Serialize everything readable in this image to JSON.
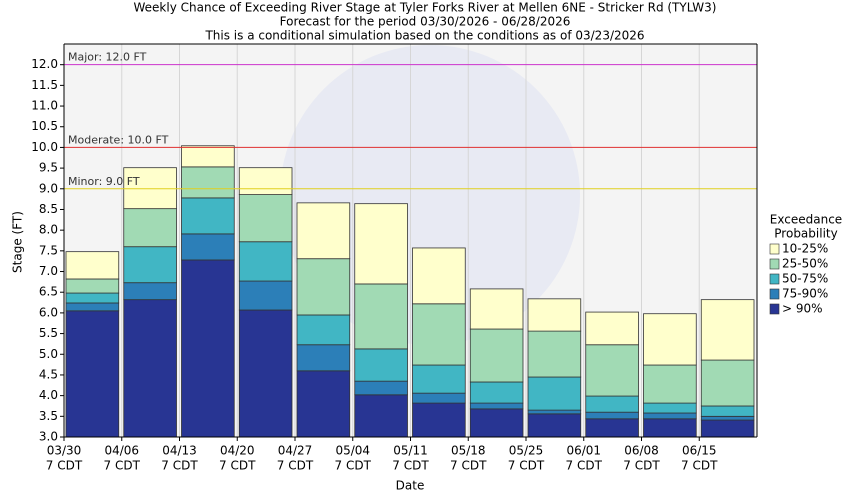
{
  "chart_data": {
    "type": "floating-bar",
    "title": "Weekly Chance of Exceeding River Stage at Tyler Forks River at Mellen 6NE - Stricker Rd (TYLW3)",
    "subtitle": "Forecast for the period 03/30/2026 - 06/28/2026",
    "note": "This is a conditional simulation based on the conditions as of 03/23/2026",
    "x_label": "Date",
    "y_label": "Stage (FT)",
    "legend_title": [
      "Exceedance",
      "Probability"
    ],
    "categories": [
      "03/30",
      "04/06",
      "04/13",
      "04/20",
      "04/27",
      "05/04",
      "05/11",
      "05/18",
      "05/25",
      "06/01",
      "06/08",
      "06/15"
    ],
    "category_sublabels": [
      "7 CDT",
      "7 CDT",
      "7 CDT",
      "7 CDT",
      "7 CDT",
      "7 CDT",
      "7 CDT",
      "7 CDT",
      "7 CDT",
      "7 CDT",
      "7 CDT",
      "7 CDT"
    ],
    "series": [
      {
        "name": "> 90%",
        "color": "#283593",
        "values": [
          6.05,
          6.32,
          7.28,
          6.07,
          4.6,
          4.02,
          3.82,
          3.68,
          3.56,
          3.44,
          3.44,
          3.41
        ]
      },
      {
        "name": "75-90%",
        "color": "#2c7fb8",
        "values": [
          6.24,
          6.73,
          7.91,
          6.77,
          5.23,
          4.35,
          4.06,
          3.82,
          3.65,
          3.6,
          3.58,
          3.5
        ]
      },
      {
        "name": "50-75%",
        "color": "#41b6c4",
        "values": [
          6.48,
          7.6,
          8.78,
          7.72,
          5.95,
          5.13,
          4.74,
          4.33,
          4.45,
          3.99,
          3.82,
          3.75
        ]
      },
      {
        "name": "25-50%",
        "color": "#a1dab4",
        "values": [
          6.82,
          8.52,
          9.53,
          8.86,
          7.31,
          6.7,
          6.22,
          5.61,
          5.56,
          5.23,
          4.74,
          4.86
        ]
      },
      {
        "name": "10-25%",
        "color": "#ffffcc",
        "values": [
          7.48,
          9.51,
          10.04,
          9.51,
          8.66,
          8.64,
          7.57,
          6.58,
          6.34,
          6.02,
          5.98,
          6.32
        ]
      }
    ],
    "thresholds": [
      {
        "value": 12.0,
        "label": "Major: 12.0 FT",
        "color": "#cc33cc"
      },
      {
        "value": 10.0,
        "label": "Moderate: 10.0 FT",
        "color": "#e03030"
      },
      {
        "value": 9.0,
        "label": "Minor: 9.0 FT",
        "color": "#e0d020"
      }
    ],
    "ylim": [
      3.0,
      12.5
    ],
    "yticks": [
      {
        "value": 3.0,
        "label": "3.0"
      },
      {
        "value": 3.5,
        "label": "3.5"
      },
      {
        "value": 4.0,
        "label": "4.0"
      },
      {
        "value": 4.5,
        "label": "4.5"
      },
      {
        "value": 5.0,
        "label": "5.0"
      },
      {
        "value": 5.5,
        "label": "5.5"
      },
      {
        "value": 6.0,
        "label": "6.0"
      },
      {
        "value": 6.5,
        "label": "6.5"
      },
      {
        "value": 7.0,
        "label": "7.0"
      },
      {
        "value": 7.5,
        "label": "7.5"
      },
      {
        "value": 8.0,
        "label": "8.0"
      },
      {
        "value": 8.5,
        "label": "8.5"
      },
      {
        "value": 9.0,
        "label": "9.0"
      },
      {
        "value": 9.5,
        "label": "9.5"
      },
      {
        "value": 10.0,
        "label": "10.0"
      },
      {
        "value": 10.5,
        "label": "10.5"
      },
      {
        "value": 11.0,
        "label": "11.0"
      },
      {
        "value": 11.5,
        "label": "11.5"
      },
      {
        "value": 12.0,
        "label": "12.0"
      }
    ],
    "grid": true
  }
}
